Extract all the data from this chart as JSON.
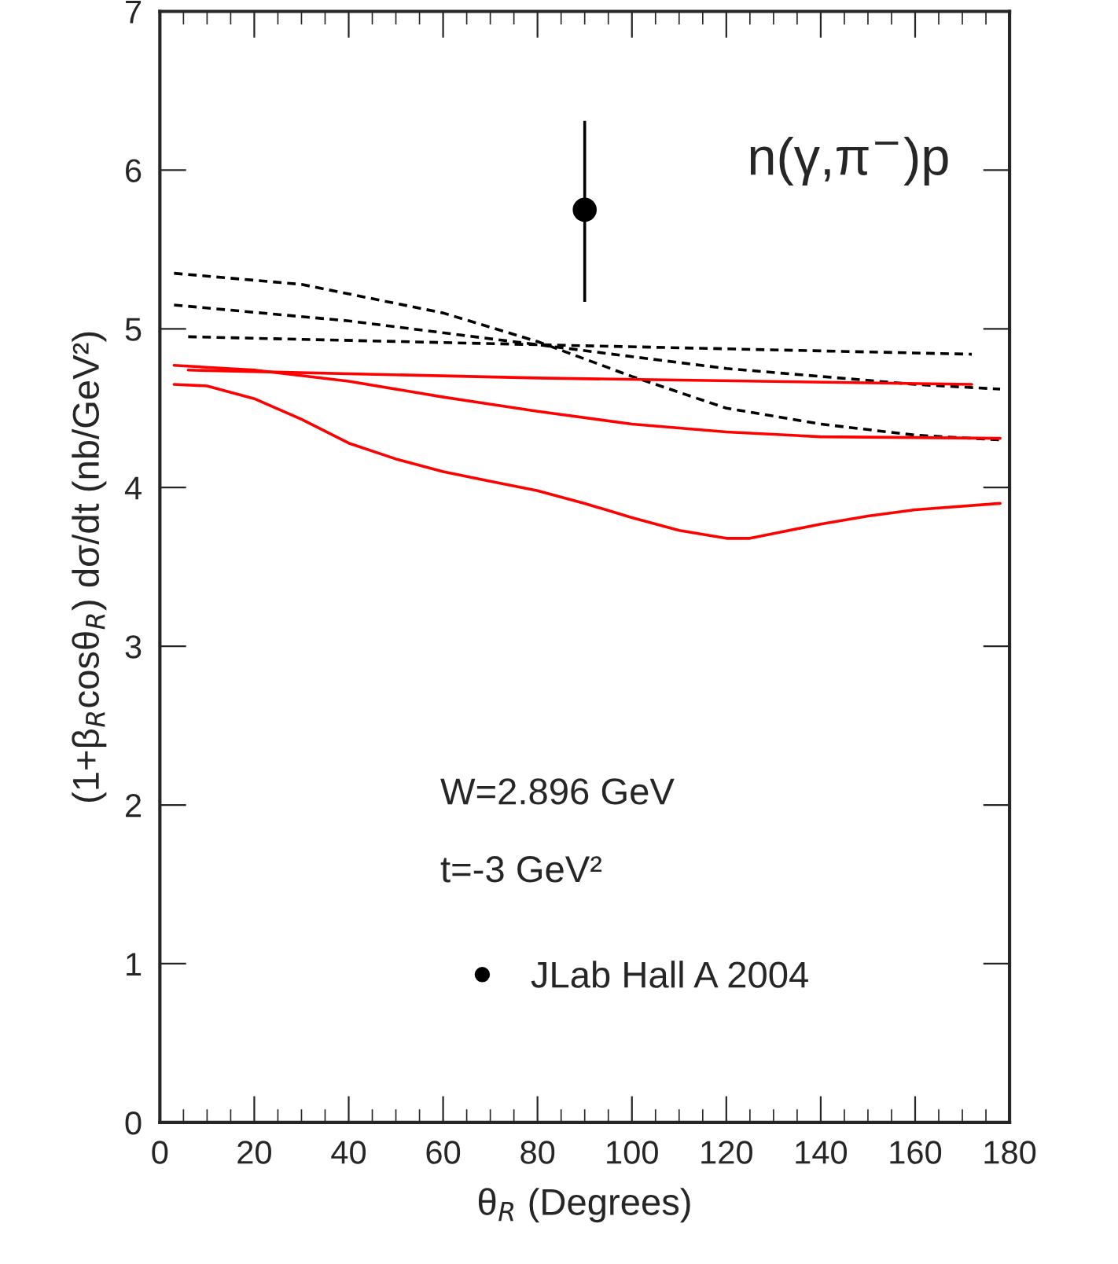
{
  "chart_data": {
    "type": "line",
    "xlabel": "θ$_{R}$ (Degrees)",
    "ylabel": "(1+β$_{R}$cosθ$_{R}$) dσ/dt (nb/GeV²)",
    "annotations": [
      "n(γ,π$^{−}$)p",
      "W=2.896 GeV",
      "t=-3 GeV²"
    ],
    "xlim": [
      0,
      180
    ],
    "xticks": [
      0,
      20,
      40,
      60,
      80,
      100,
      120,
      140,
      160,
      180
    ],
    "ylim": [
      0,
      7
    ],
    "yticks": [
      0,
      1,
      2,
      3,
      4,
      5,
      6,
      7
    ],
    "grid": false,
    "legend": "bottom",
    "marker": "none",
    "series": [
      {
        "color": "#000000",
        "line_style": "dashed",
        "x": [
          3,
          30,
          60,
          80,
          100,
          120,
          140,
          160,
          178
        ],
        "values": [
          5.35,
          5.28,
          5.1,
          4.92,
          4.7,
          4.5,
          4.4,
          4.33,
          4.3
        ]
      },
      {
        "color": "#000000",
        "line_style": "dashed",
        "x": [
          3,
          40,
          80,
          120,
          160,
          178
        ],
        "values": [
          5.15,
          5.05,
          4.9,
          4.75,
          4.65,
          4.62
        ]
      },
      {
        "color": "#000000",
        "line_style": "dashed",
        "x": [
          6,
          80,
          172
        ],
        "values": [
          4.95,
          4.9,
          4.84
        ]
      },
      {
        "color": "#ff0000",
        "line_style": "solid",
        "x": [
          6,
          80,
          172
        ],
        "values": [
          4.74,
          4.69,
          4.65
        ]
      },
      {
        "color": "#ff0000",
        "line_style": "solid",
        "x": [
          3,
          20,
          40,
          60,
          80,
          100,
          120,
          140,
          178
        ],
        "values": [
          4.77,
          4.74,
          4.67,
          4.57,
          4.48,
          4.4,
          4.35,
          4.32,
          4.31
        ]
      },
      {
        "color": "#ff0000",
        "line_style": "solid",
        "x": [
          3,
          10,
          20,
          30,
          40,
          50,
          60,
          70,
          80,
          90,
          100,
          110,
          120,
          125,
          130,
          140,
          150,
          160,
          178
        ],
        "values": [
          4.65,
          4.64,
          4.56,
          4.43,
          4.28,
          4.18,
          4.1,
          4.04,
          3.98,
          3.9,
          3.81,
          3.73,
          3.68,
          3.68,
          3.71,
          3.77,
          3.82,
          3.86,
          3.9
        ]
      },
      {
        "type": "scatter",
        "name": "JLab Hall A 2004",
        "color": "#000000",
        "marker": "circle",
        "x": [
          90
        ],
        "values": [
          5.75
        ],
        "errors": [
          [
            5.17,
            6.31
          ]
        ]
      }
    ]
  }
}
